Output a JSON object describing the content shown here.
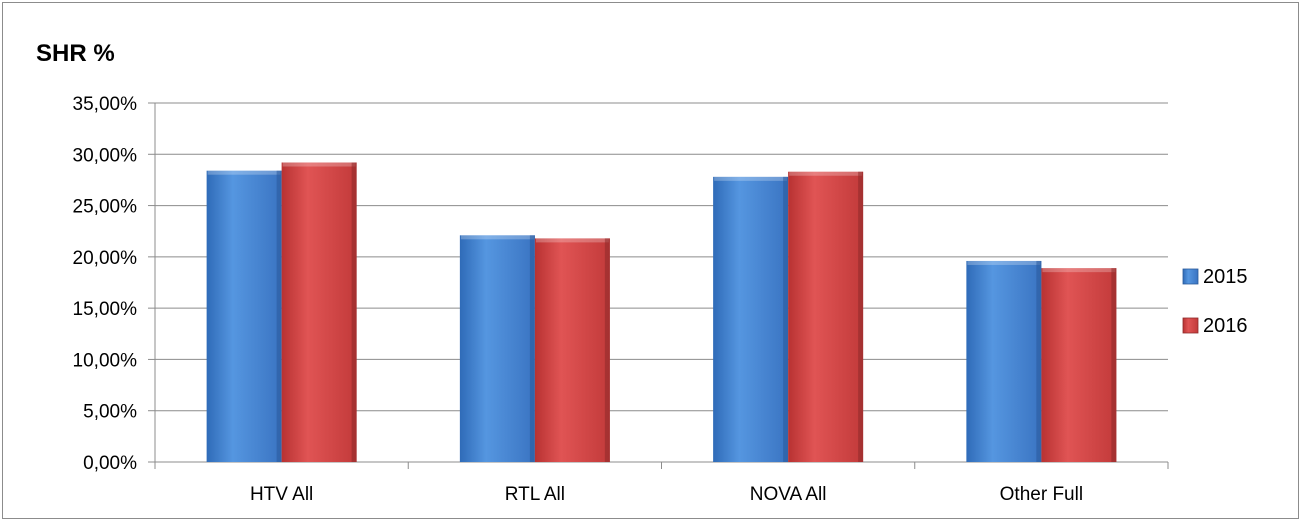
{
  "chart_data": {
    "type": "bar",
    "title": "SHR %",
    "categories": [
      "HTV All",
      "RTL All",
      "NOVA All",
      "Other Full"
    ],
    "series": [
      {
        "name": "2015",
        "values": [
          28.4,
          22.1,
          27.8,
          19.6
        ]
      },
      {
        "name": "2016",
        "values": [
          29.2,
          21.8,
          28.3,
          18.9
        ]
      }
    ],
    "ylim": [
      0,
      35
    ],
    "yticks": [
      "0,00%",
      "5,00%",
      "10,00%",
      "15,00%",
      "20,00%",
      "25,00%",
      "30,00%",
      "35,00%"
    ],
    "ytick_values": [
      0,
      5,
      10,
      15,
      20,
      25,
      30,
      35
    ],
    "grid": true,
    "legend_position": "right",
    "colors": {
      "2015": "#4a86cf",
      "2016": "#cf4444",
      "2015_dark": "#2a5a9a",
      "2016_dark": "#8e2a2a",
      "gridline": "#8c8c8c"
    }
  }
}
